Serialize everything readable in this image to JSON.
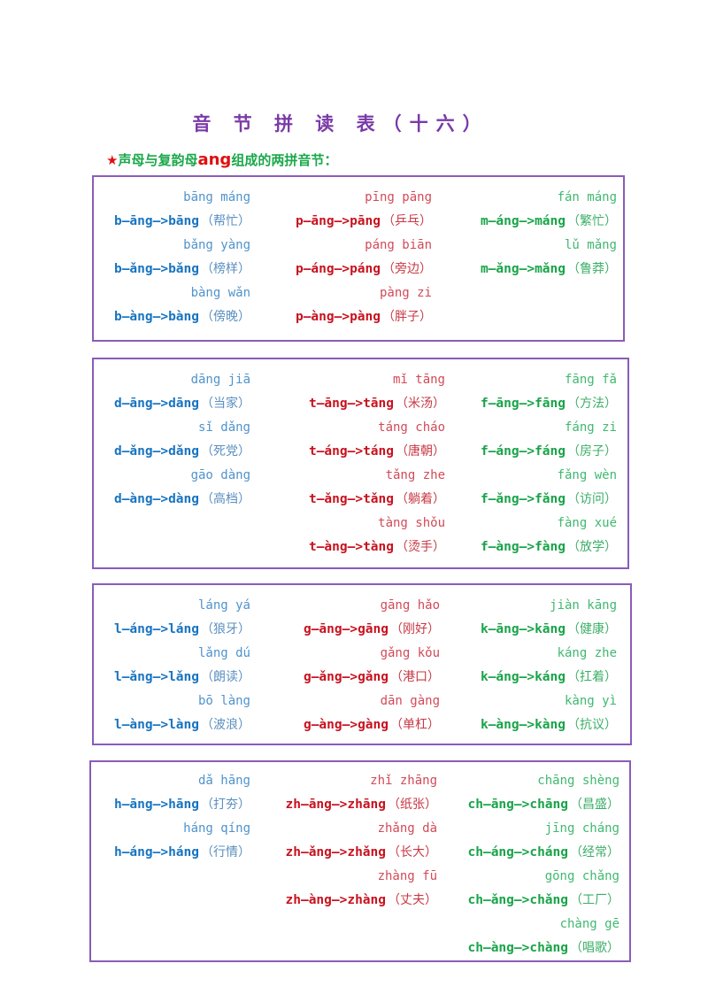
{
  "title": "音 节 拼 读 表（十六）",
  "subtitle": {
    "star": "★",
    "before": "声母与复韵母",
    "highlight": "ang",
    "after": "组成的两拼音节："
  },
  "colors": {
    "title": "#7a3aa8",
    "border": "#8a5cb8",
    "blue": "#1874c0",
    "red": "#c8121e",
    "green": "#18a448"
  },
  "boxes": [
    {
      "columns": [
        {
          "color": "blue",
          "entries": [
            {
              "pinyin": "bāng máng",
              "formula": "b—āng—>bāng",
              "word": "（帮忙）"
            },
            {
              "pinyin": "bǎng yàng",
              "formula": "b—ǎng—>bǎng",
              "word": "（榜样）"
            },
            {
              "pinyin": "bàng wǎn",
              "formula": "b—àng—>bàng",
              "word": "（傍晚）"
            }
          ]
        },
        {
          "color": "red",
          "entries": [
            {
              "pinyin": "pīng pāng",
              "formula": "p—āng—>pāng",
              "word": "（乒乓）"
            },
            {
              "pinyin": "páng biān",
              "formula": "p—áng—>páng",
              "word": "（旁边）"
            },
            {
              "pinyin": "pàng zi",
              "formula": "p—àng—>pàng",
              "word": "（胖子）"
            }
          ]
        },
        {
          "color": "green",
          "entries": [
            {
              "pinyin": "fán máng",
              "formula": "m—áng—>máng",
              "word": "（繁忙）"
            },
            {
              "pinyin": "lǔ mǎng",
              "formula": "m—ǎng—>mǎng",
              "word": "（鲁莽）"
            }
          ]
        }
      ]
    },
    {
      "columns": [
        {
          "color": "blue",
          "entries": [
            {
              "pinyin": "dāng jiā",
              "formula": "d—āng—>dāng",
              "word": "（当家）"
            },
            {
              "pinyin": "sǐ dǎng",
              "formula": "d—ǎng—>dǎng",
              "word": "（死党）"
            },
            {
              "pinyin": "gāo dàng",
              "formula": "d—àng—>dàng",
              "word": "（高档）"
            }
          ]
        },
        {
          "color": "red",
          "entries": [
            {
              "pinyin": "mǐ tāng",
              "formula": "t—āng—>tāng",
              "word": "（米汤）"
            },
            {
              "pinyin": "táng cháo",
              "formula": "t—áng—>táng",
              "word": "（唐朝）"
            },
            {
              "pinyin": "tǎng zhe",
              "formula": "t—ǎng—>tǎng",
              "word": "（躺着）"
            },
            {
              "pinyin": "tàng shǒu",
              "formula": "t—àng—>tàng",
              "word": "（烫手）"
            }
          ]
        },
        {
          "color": "green",
          "entries": [
            {
              "pinyin": "fāng fǎ",
              "formula": "f—āng—>fāng",
              "word": "（方法）"
            },
            {
              "pinyin": "fáng zi",
              "formula": "f—áng—>fáng",
              "word": "（房子）"
            },
            {
              "pinyin": "fǎng wèn",
              "formula": "f—ǎng—>fǎng",
              "word": "（访问）"
            },
            {
              "pinyin": "fàng xué",
              "formula": "f—àng—>fàng",
              "word": "（放学）"
            }
          ]
        }
      ]
    },
    {
      "columns": [
        {
          "color": "blue",
          "entries": [
            {
              "pinyin": "láng yá",
              "formula": "l—áng—>láng",
              "word": "（狼牙）"
            },
            {
              "pinyin": "lǎng dú",
              "formula": "l—ǎng—>lǎng",
              "word": "（朗读）"
            },
            {
              "pinyin": "bō làng",
              "formula": "l—àng—>làng",
              "word": "（波浪）"
            }
          ]
        },
        {
          "color": "red",
          "entries": [
            {
              "pinyin": "gāng hǎo",
              "formula": "g—āng—>gāng",
              "word": "（刚好）"
            },
            {
              "pinyin": "gǎng kǒu",
              "formula": "g—ǎng—>gǎng",
              "word": "（港口）"
            },
            {
              "pinyin": "dān gàng",
              "formula": "g—àng—>gàng",
              "word": "（单杠）"
            }
          ]
        },
        {
          "color": "green",
          "entries": [
            {
              "pinyin": "jiàn kāng",
              "formula": "k—āng—>kāng",
              "word": "（健康）"
            },
            {
              "pinyin": "káng zhe",
              "formula": "k—áng—>káng",
              "word": "（扛着）"
            },
            {
              "pinyin": "kàng yì",
              "formula": "k—àng—>kàng",
              "word": "（抗议）"
            }
          ]
        }
      ]
    },
    {
      "columns": [
        {
          "color": "blue",
          "entries": [
            {
              "pinyin": "dǎ hāng",
              "formula": "h—āng—>hāng",
              "word": "（打夯）"
            },
            {
              "pinyin": "háng qíng",
              "formula": "h—áng—>háng",
              "word": "（行情）"
            }
          ]
        },
        {
          "color": "red",
          "entries": [
            {
              "pinyin": "zhǐ zhāng",
              "formula": "zh—āng—>zhāng",
              "word": "（纸张）"
            },
            {
              "pinyin": "zhǎng dà",
              "formula": "zh—ǎng—>zhǎng",
              "word": "（长大）"
            },
            {
              "pinyin": "zhàng fū",
              "formula": "zh—àng—>zhàng",
              "word": "（丈夫）"
            }
          ]
        },
        {
          "color": "green",
          "entries": [
            {
              "pinyin": "chāng shèng",
              "formula": "ch—āng—>chāng",
              "word": "（昌盛）"
            },
            {
              "pinyin": "jīng cháng",
              "formula": "ch—áng—>cháng",
              "word": "（经常）"
            },
            {
              "pinyin": "gōng chǎng",
              "formula": "ch—ǎng—>chǎng",
              "word": "（工厂）"
            },
            {
              "pinyin": "chàng gē",
              "formula": "ch—àng—>chàng",
              "word": "（唱歌）"
            }
          ]
        }
      ]
    }
  ]
}
